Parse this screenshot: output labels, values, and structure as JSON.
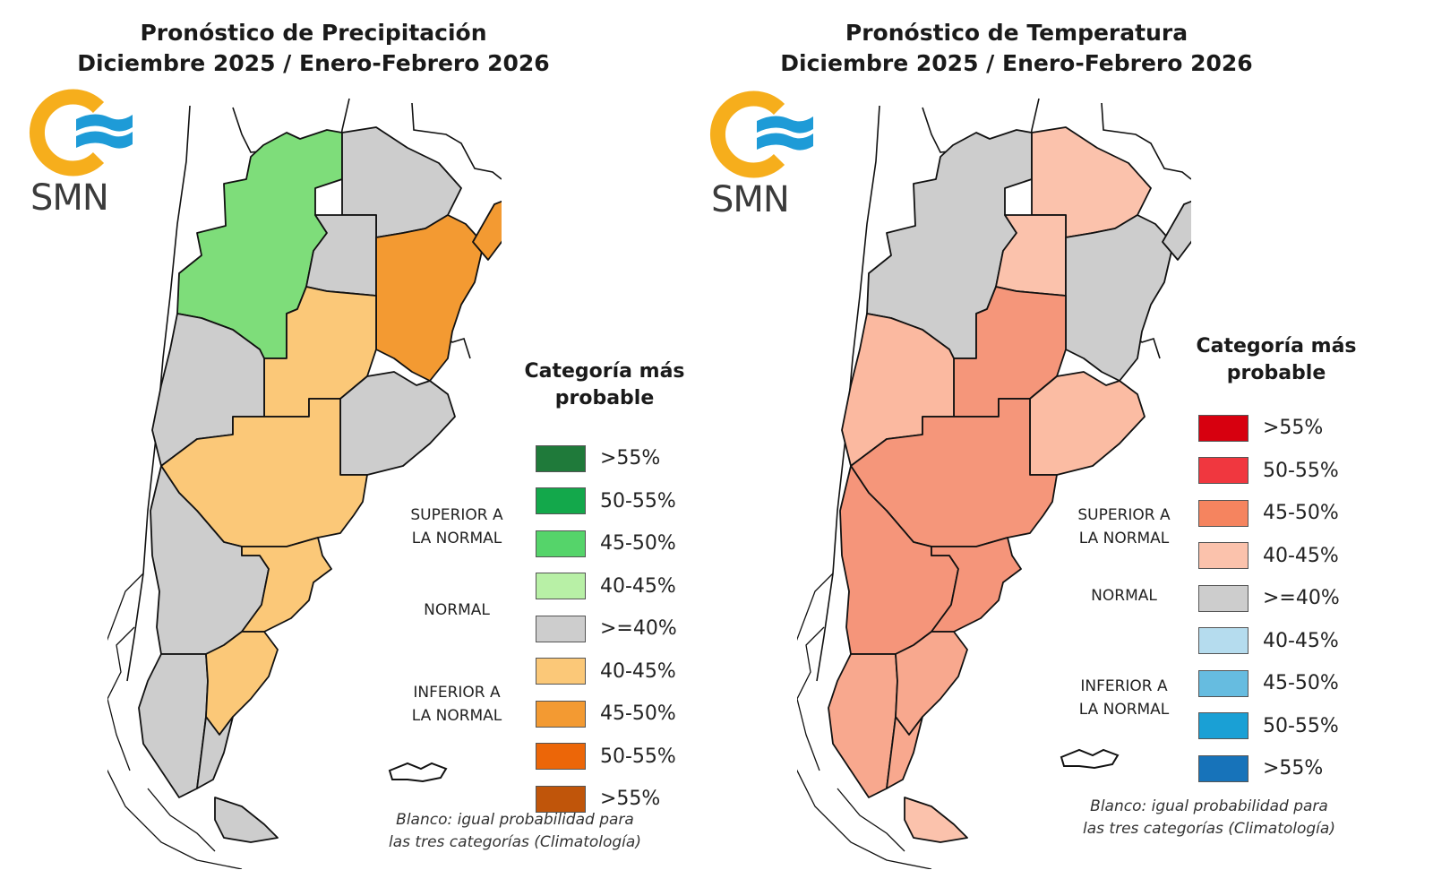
{
  "panels": [
    {
      "id": "precipitation",
      "title_line1": "Pronóstico de Precipitación",
      "title_line2": "Diciembre 2025 / Enero-Febrero 2026",
      "logo": {
        "text": "SMN",
        "icon": "smn-sun-waves-logo",
        "sun_color": "#F6AE1C",
        "wave_color": "#1E9BD7"
      },
      "legend": {
        "title_line1": "Categoría más",
        "title_line2": "probable",
        "items": [
          {
            "label": ">55%",
            "color": "#1F7A3A",
            "category": "superior"
          },
          {
            "label": "50-55%",
            "color": "#13A84B",
            "category": "superior"
          },
          {
            "label": "45-50%",
            "color": "#55D46A",
            "category": "superior"
          },
          {
            "label": "40-45%",
            "color": "#B8F0A6",
            "category": "superior"
          },
          {
            "label": ">=40%",
            "color": "#CDCDCD",
            "category": "normal"
          },
          {
            "label": "40-45%",
            "color": "#FBC878",
            "category": "inferior"
          },
          {
            "label": "45-50%",
            "color": "#F39A32",
            "category": "inferior"
          },
          {
            "label": "50-55%",
            "color": "#EC6608",
            "category": "inferior"
          },
          {
            "label": ">55%",
            "color": "#C0550A",
            "category": "inferior"
          }
        ],
        "categories": {
          "superior_line1": "SUPERIOR A",
          "superior_line2": "LA NORMAL",
          "normal": "NORMAL",
          "inferior_line1": "INFERIOR A",
          "inferior_line2": "LA NORMAL"
        }
      },
      "note_line1": "Blanco: igual probabilidad para",
      "note_line2": "las tres categorías (Climatología)",
      "regions": {
        "northwest": "#7EDD7A",
        "northwest_light": "#A9E89A",
        "chaco_north": "#CDCDCD",
        "center_north": "#CDCDCD",
        "litoral": "#F39A32",
        "misiones": "#F39A32",
        "center": "#FBC878",
        "cuyo": "#CDCDCD",
        "pampas": "#FBC878",
        "buenos_aires_east": "#CDCDCD",
        "patagonia_west": "#CDCDCD",
        "patagonia_east": "#FBC878",
        "santa_cruz_west": "#CDCDCD",
        "santa_cruz_east": "#FBC878",
        "tierra_del_fuego": "#CDCDCD"
      }
    },
    {
      "id": "temperature",
      "title_line1": "Pronóstico de Temperatura",
      "title_line2": "Diciembre 2025 / Enero-Febrero 2026",
      "logo": {
        "text": "SMN",
        "icon": "smn-sun-waves-logo",
        "sun_color": "#F6AE1C",
        "wave_color": "#1E9BD7"
      },
      "legend": {
        "title_line1": "Categoría más",
        "title_line2": "probable",
        "items": [
          {
            "label": ">55%",
            "color": "#D7000F",
            "category": "superior"
          },
          {
            "label": "50-55%",
            "color": "#F0373F",
            "category": "superior"
          },
          {
            "label": "45-50%",
            "color": "#F5845F",
            "category": "superior"
          },
          {
            "label": "40-45%",
            "color": "#FBC2AC",
            "category": "superior"
          },
          {
            "label": ">=40%",
            "color": "#CDCDCD",
            "category": "normal"
          },
          {
            "label": "40-45%",
            "color": "#B5DCEE",
            "category": "inferior"
          },
          {
            "label": "45-50%",
            "color": "#66BCE0",
            "category": "inferior"
          },
          {
            "label": "50-55%",
            "color": "#1AA0D5",
            "category": "inferior"
          },
          {
            "label": ">55%",
            "color": "#1773BA",
            "category": "inferior"
          }
        ],
        "categories": {
          "superior_line1": "SUPERIOR A",
          "superior_line2": "LA NORMAL",
          "normal": "NORMAL",
          "inferior_line1": "INFERIOR A",
          "inferior_line2": "LA NORMAL"
        }
      },
      "note_line1": "Blanco: igual probabilidad para",
      "note_line2": "las tres categorías (Climatología)",
      "regions": {
        "northwest": "#CDCDCD",
        "northwest_light": "#CDCDCD",
        "chaco_north": "#FBC2AC",
        "center_north": "#FBC2AC",
        "litoral": "#CDCDCD",
        "misiones": "#CDCDCD",
        "center": "#F5967A",
        "cuyo": "#FBB9A0",
        "pampas": "#F5967A",
        "buenos_aires_east": "#FBBCA3",
        "patagonia_west": "#F5957A",
        "patagonia_east": "#F5957A",
        "santa_cruz_west": "#F8A88E",
        "santa_cruz_east": "#F8A88E",
        "tierra_del_fuego": "#FBC2AC"
      }
    }
  ]
}
